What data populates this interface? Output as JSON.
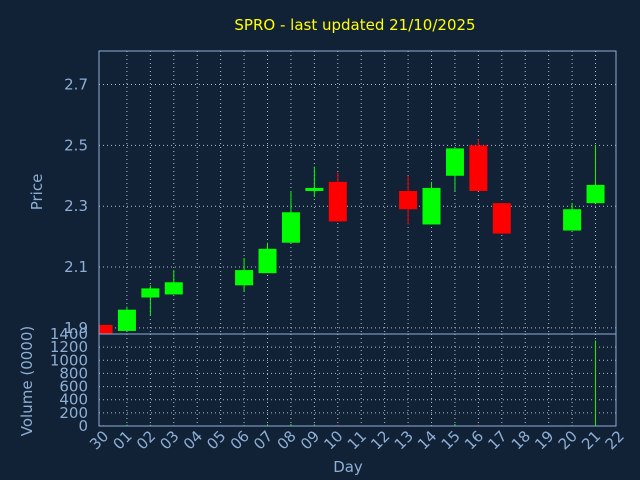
{
  "chart_data": {
    "type": "candlestick",
    "title": "SPRO - last updated 21/10/2025",
    "xlabel": "Day",
    "x_ticks": [
      "30",
      "01",
      "02",
      "03",
      "04",
      "05",
      "06",
      "07",
      "08",
      "09",
      "10",
      "11",
      "12",
      "13",
      "14",
      "15",
      "16",
      "17",
      "18",
      "19",
      "20",
      "21",
      "22"
    ],
    "price": {
      "ylabel": "Price",
      "ylim": [
        1.88,
        2.81
      ],
      "y_ticks": [
        "1.9",
        "2.1",
        "2.3",
        "2.5",
        "2.7"
      ],
      "grid": true,
      "colors": {
        "up": "#00ff00",
        "down": "#ff0000"
      }
    },
    "volume": {
      "ylabel": "Volume (0000)",
      "ylim": [
        0,
        1400
      ],
      "y_ticks": [
        "0",
        "200",
        "400",
        "600",
        "800",
        "1000",
        "1200",
        "1400"
      ],
      "grid": true
    },
    "candles": [
      {
        "day": "30",
        "open": 1.91,
        "high": 1.91,
        "low": 1.88,
        "close": 1.88,
        "volume": 15
      },
      {
        "day": "01",
        "open": 1.89,
        "high": 1.97,
        "low": 1.89,
        "close": 1.96,
        "volume": 20
      },
      {
        "day": "02",
        "open": 2.0,
        "high": 2.04,
        "low": 1.94,
        "close": 2.03,
        "volume": 18
      },
      {
        "day": "03",
        "open": 2.01,
        "high": 2.09,
        "low": 2.01,
        "close": 2.05,
        "volume": 12
      },
      {
        "day": "06",
        "open": 2.04,
        "high": 2.13,
        "low": 2.02,
        "close": 2.09,
        "volume": 15
      },
      {
        "day": "07",
        "open": 2.08,
        "high": 2.18,
        "low": 2.08,
        "close": 2.16,
        "volume": 25
      },
      {
        "day": "08",
        "open": 2.18,
        "high": 2.35,
        "low": 2.18,
        "close": 2.28,
        "volume": 30
      },
      {
        "day": "09",
        "open": 2.35,
        "high": 2.43,
        "low": 2.33,
        "close": 2.36,
        "volume": 25
      },
      {
        "day": "10",
        "open": 2.38,
        "high": 2.41,
        "low": 2.25,
        "close": 2.25,
        "volume": 20
      },
      {
        "day": "13",
        "open": 2.35,
        "high": 2.4,
        "low": 2.24,
        "close": 2.29,
        "volume": 15
      },
      {
        "day": "14",
        "open": 2.24,
        "high": 2.38,
        "low": 2.24,
        "close": 2.36,
        "volume": 15
      },
      {
        "day": "15",
        "open": 2.4,
        "high": 2.49,
        "low": 2.35,
        "close": 2.49,
        "volume": 30
      },
      {
        "day": "16",
        "open": 2.5,
        "high": 2.52,
        "low": 2.35,
        "close": 2.35,
        "volume": 20
      },
      {
        "day": "17",
        "open": 2.31,
        "high": 2.31,
        "low": 2.21,
        "close": 2.21,
        "volume": 15
      },
      {
        "day": "20",
        "open": 2.22,
        "high": 2.31,
        "low": 2.22,
        "close": 2.29,
        "volume": 15
      },
      {
        "day": "21",
        "open": 2.31,
        "high": 2.5,
        "low": 2.31,
        "close": 2.37,
        "volume": 1300
      }
    ]
  }
}
